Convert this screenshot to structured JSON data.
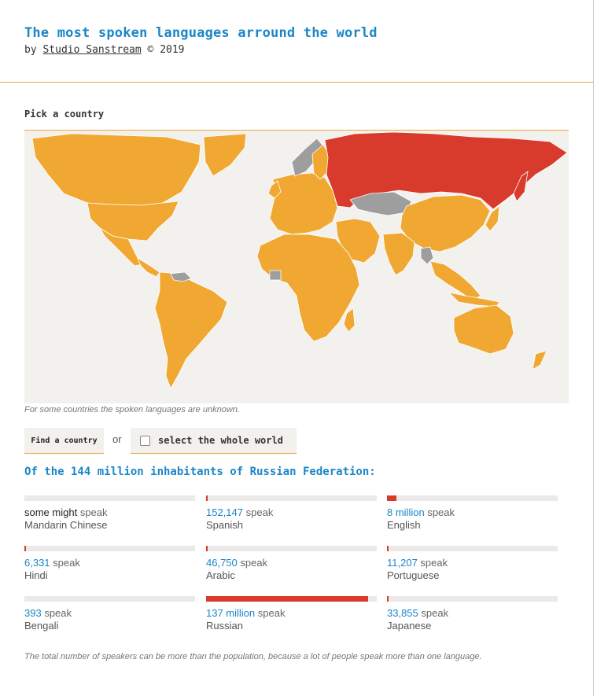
{
  "header": {
    "title": "The most spoken languages arround the world",
    "by_prefix": "by",
    "studio": "Studio Sanstream",
    "copyright": "© 2019"
  },
  "picker": {
    "label": "Pick a country",
    "unknown_note": "For some countries the spoken languages are unknown.",
    "find_button": "Find a country",
    "or": "or",
    "whole_world": "select the whole world",
    "whole_world_checked": false
  },
  "selection": {
    "heading": "Of the 144 million inhabitants of Russian Federation:",
    "country": "Russian Federation"
  },
  "languages": [
    {
      "count": "some might",
      "verb": "speak",
      "name": "Mandarin Chinese",
      "share": 0.0
    },
    {
      "count": "152,147",
      "verb": "speak",
      "name": "Spanish",
      "share": 0.001
    },
    {
      "count": "8 million",
      "verb": "speak",
      "name": "English",
      "share": 0.056
    },
    {
      "count": "6,331",
      "verb": "speak",
      "name": "Hindi",
      "share": 0.0001
    },
    {
      "count": "46,750",
      "verb": "speak",
      "name": "Arabic",
      "share": 0.0003
    },
    {
      "count": "11,207",
      "verb": "speak",
      "name": "Portuguese",
      "share": 0.0001
    },
    {
      "count": "393",
      "verb": "speak",
      "name": "Bengali",
      "share": 0.0
    },
    {
      "count": "137 million",
      "verb": "speak",
      "name": "Russian",
      "share": 0.95
    },
    {
      "count": "33,855",
      "verb": "speak",
      "name": "Japanese",
      "share": 0.0002
    }
  ],
  "footnote": "The total number of speakers can be more than the population, because a lot of people speak more than one language.",
  "colors": {
    "accent_blue": "#1a86c8",
    "selected_red": "#d83a2b",
    "land_orange": "#f0a832",
    "unknown_grey": "#9e9e9e"
  }
}
